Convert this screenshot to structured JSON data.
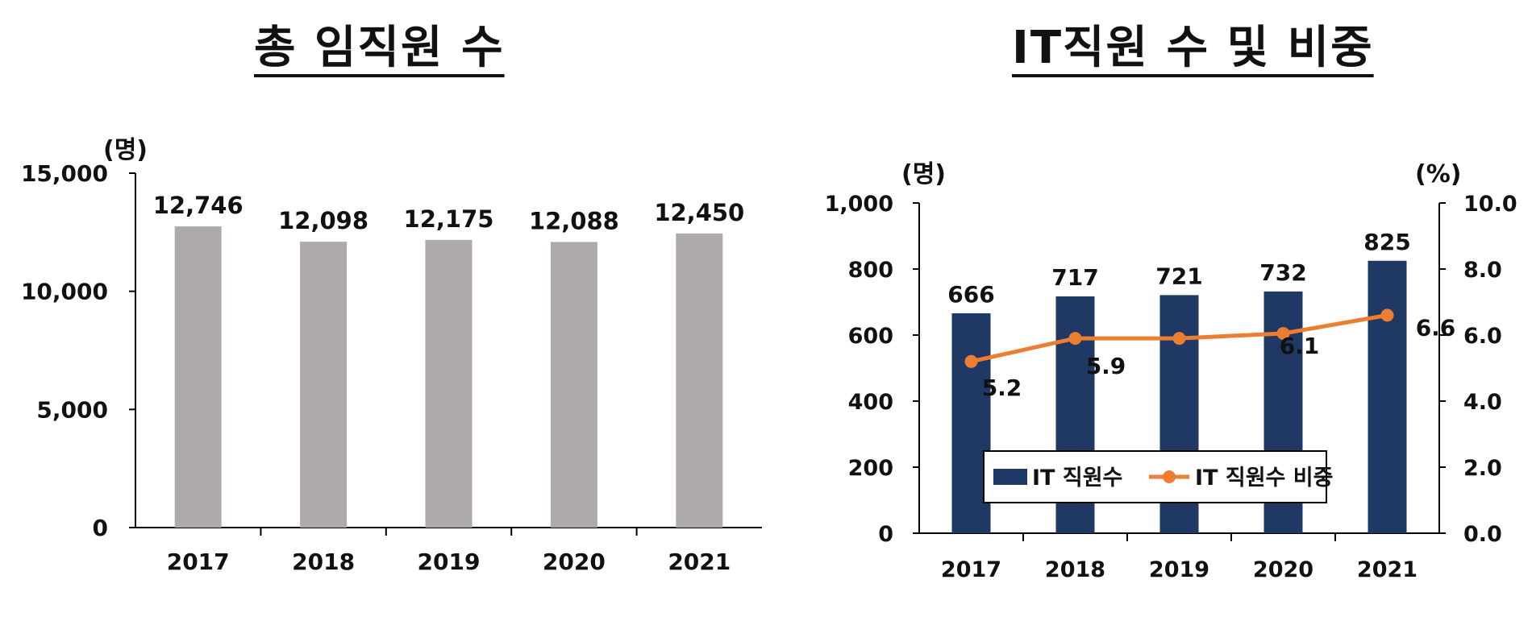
{
  "chart_data": [
    {
      "type": "bar",
      "title": "총 임직원 수",
      "ylabel": "(명)",
      "categories": [
        "2017",
        "2018",
        "2019",
        "2020",
        "2021"
      ],
      "values": [
        12746,
        12098,
        12175,
        12088,
        12450
      ],
      "value_labels": [
        "12,746",
        "12,098",
        "12,175",
        "12,088",
        "12,450"
      ],
      "ylim": [
        0,
        15000
      ],
      "yticks": [
        0,
        5000,
        10000,
        15000
      ],
      "ytick_labels": [
        "0",
        "5,000",
        "10,000",
        "15,000"
      ],
      "bar_color": "#aeaaaa",
      "grid": false
    },
    {
      "type": "bar",
      "title": "IT직원 수 및 비중",
      "ylabel": "(명)",
      "ylabel_right": "(%)",
      "categories": [
        "2017",
        "2018",
        "2019",
        "2020",
        "2021"
      ],
      "ylim": [
        0,
        1000
      ],
      "yticks": [
        0,
        200,
        400,
        600,
        800,
        1000
      ],
      "ytick_labels": [
        "0",
        "200",
        "400",
        "600",
        "800",
        "1,000"
      ],
      "ylim_right": [
        0,
        10
      ],
      "yticks_right": [
        0,
        2,
        4,
        6,
        8,
        10
      ],
      "ytick_labels_right": [
        "0.0",
        "2.0",
        "4.0",
        "6.0",
        "8.0",
        "10.0"
      ],
      "series": [
        {
          "name": "IT 직원수",
          "type": "bar",
          "axis": "left",
          "values": [
            666,
            717,
            721,
            732,
            825
          ],
          "value_labels": [
            "666",
            "717",
            "721",
            "732",
            "825"
          ],
          "color": "#1f3864"
        },
        {
          "name": "IT 직원수 비중",
          "type": "line",
          "axis": "right",
          "values": [
            5.2,
            5.9,
            5.9,
            6.05,
            6.6
          ],
          "value_labels": [
            "5.2",
            "5.9",
            "",
            "6.1",
            "6.6"
          ],
          "color": "#ed7d31"
        }
      ],
      "legend": {
        "position": "bottom-center",
        "entries": [
          "IT 직원수",
          "IT 직원수 비중"
        ]
      },
      "grid": false
    }
  ]
}
